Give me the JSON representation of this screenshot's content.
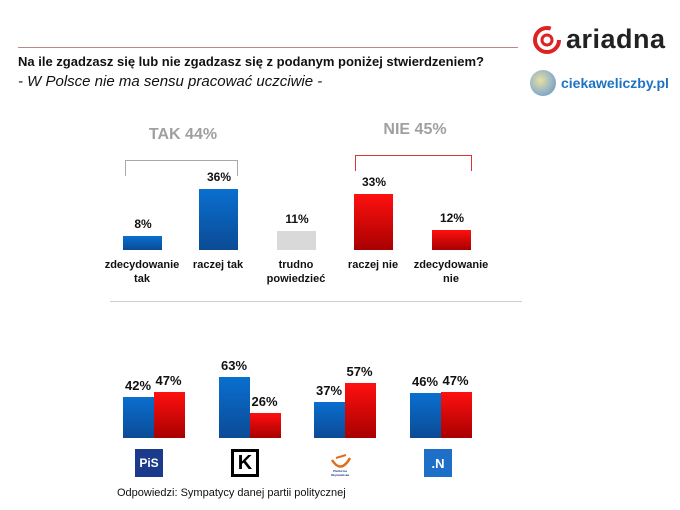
{
  "header": {
    "title": "Na ile zgadzasz się lub nie zgadzasz się z podanym poniżej stwierdzeniem?",
    "subtitle": "- W Polsce nie ma sensu pracować uczciwie -",
    "brand": "ariadna",
    "site": "ciekaweliczby.pl"
  },
  "colors": {
    "tak": "#0b5fb8",
    "nie": "#e00000",
    "neutral": "#d9d9d9"
  },
  "chart_data": [
    {
      "type": "bar",
      "categories": [
        "zdecydowanie tak",
        "raczej tak",
        "trudno powiedzieć",
        "raczej nie",
        "zdecydowanie nie"
      ],
      "cat_lines": [
        [
          "zdecydowanie",
          "tak"
        ],
        [
          "raczej tak"
        ],
        [
          "trudno",
          "powiedzieć"
        ],
        [
          "raczej nie"
        ],
        [
          "zdecydowanie",
          "nie"
        ]
      ],
      "values": [
        8,
        36,
        11,
        33,
        12
      ],
      "labels": [
        "8%",
        "36%",
        "11%",
        "33%",
        "12%"
      ],
      "groups": [
        {
          "label": "TAK 44%",
          "value": 44
        },
        {
          "label": "NIE 45%",
          "value": 45
        }
      ]
    },
    {
      "type": "bar",
      "categories": [
        "PiS",
        "Kukiz'15",
        "Platforma Obywatelska",
        ".N"
      ],
      "series": [
        {
          "values": [
            42,
            63,
            37,
            46
          ],
          "labels": [
            "42%",
            "63%",
            "37%",
            "46%"
          ]
        },
        {
          "values": [
            47,
            26,
            57,
            47
          ],
          "labels": [
            "47%",
            "26%",
            "57%",
            "47%"
          ]
        }
      ],
      "logo_text": [
        "PiS",
        "K",
        "Platforma Obywatelska",
        ".N"
      ]
    }
  ],
  "footnote": "Odpowiedzi: Sympatycy danej partii politycznej"
}
